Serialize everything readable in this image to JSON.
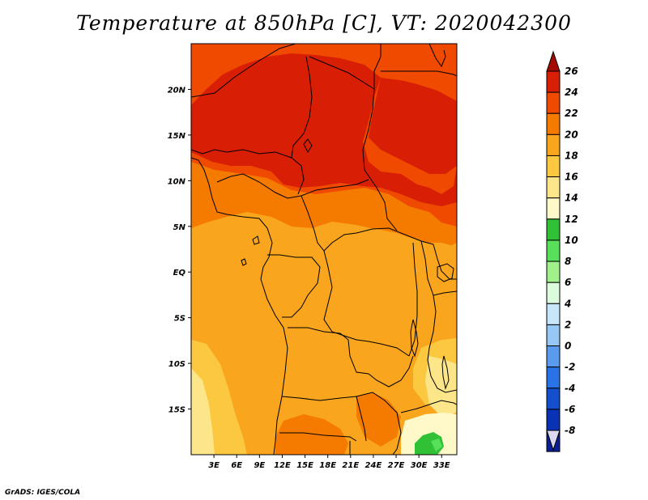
{
  "title": "Temperature at 850hPa [C], VT: 2020042300",
  "footer": "GrADS: IGES/COLA",
  "map": {
    "lon_range": [
      0,
      35
    ],
    "lat_range": [
      -20,
      25
    ],
    "x_ticks": [
      {
        "value": 3,
        "label": "3E"
      },
      {
        "value": 6,
        "label": "6E"
      },
      {
        "value": 9,
        "label": "9E"
      },
      {
        "value": 12,
        "label": "12E"
      },
      {
        "value": 15,
        "label": "15E"
      },
      {
        "value": 18,
        "label": "18E"
      },
      {
        "value": 21,
        "label": "21E"
      },
      {
        "value": 24,
        "label": "24E"
      },
      {
        "value": 27,
        "label": "27E"
      },
      {
        "value": 30,
        "label": "30E"
      },
      {
        "value": 33,
        "label": "33E"
      }
    ],
    "y_ticks": [
      {
        "value": 20,
        "label": "20N"
      },
      {
        "value": 15,
        "label": "15N"
      },
      {
        "value": 10,
        "label": "10N"
      },
      {
        "value": 5,
        "label": "5N"
      },
      {
        "value": 0,
        "label": "EQ"
      },
      {
        "value": -5,
        "label": "5S"
      },
      {
        "value": -10,
        "label": "10S"
      },
      {
        "value": -15,
        "label": "15S"
      }
    ]
  },
  "colorbar": {
    "labels": [
      "26",
      "24",
      "22",
      "20",
      "18",
      "16",
      "14",
      "12",
      "10",
      "8",
      "6",
      "4",
      "2",
      "0",
      "-2",
      "-4",
      "-6",
      "-8"
    ],
    "colors": [
      "#a50a00",
      "#d81e05",
      "#f04a00",
      "#f57a00",
      "#f9a51e",
      "#fbc840",
      "#fde68a",
      "#fff8c8",
      "#31c137",
      "#58e05a",
      "#a0f08c",
      "#dcfadc",
      "#c8e6fa",
      "#96c8f5",
      "#5a9bf0",
      "#2873e6",
      "#1450cd",
      "#0a32b4",
      "#0a1e96",
      "#050a6e"
    ]
  },
  "regions": {
    "colors": {
      "t26": "#d81e05",
      "t24": "#f04a00",
      "t22": "#f57a00",
      "t20": "#f9a51e",
      "t18": "#fbc840",
      "t16": "#fde68a",
      "t14": "#fff8c8",
      "t12": "#31c137",
      "t10": "#58e05a"
    }
  }
}
